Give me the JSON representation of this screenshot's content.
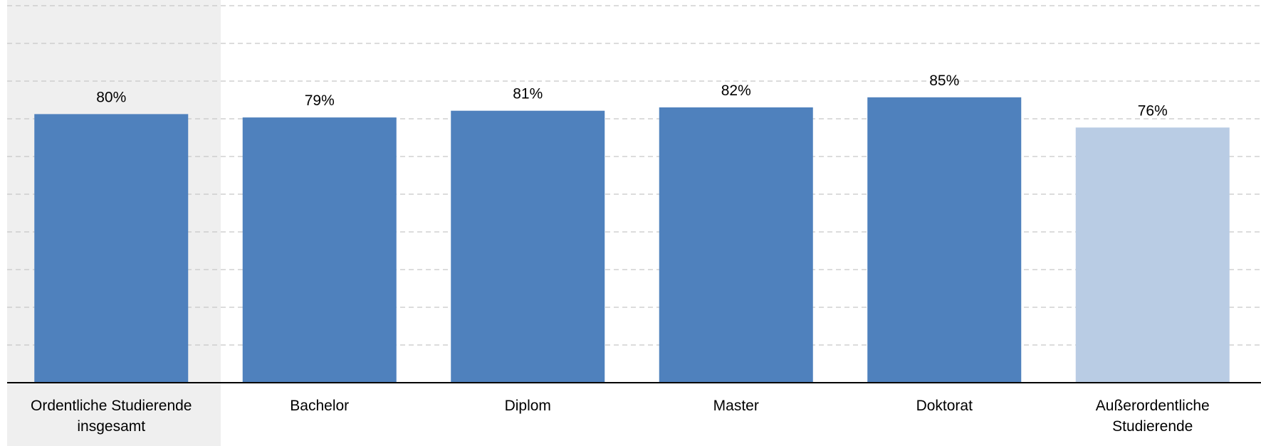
{
  "chart_data": {
    "type": "bar",
    "categories": [
      [
        "Ordentliche Studierende",
        "insgesamt"
      ],
      [
        "Bachelor"
      ],
      [
        "Diplom"
      ],
      [
        "Master"
      ],
      [
        "Doktorat"
      ],
      [
        "Außerordentliche",
        "Studierende"
      ]
    ],
    "values": [
      80,
      79,
      81,
      82,
      85,
      76
    ],
    "value_labels": [
      "80%",
      "79%",
      "81%",
      "82%",
      "85%",
      "76%"
    ],
    "ylim": [
      0,
      100
    ],
    "grid": true,
    "colors": {
      "bar": "#4f81bd",
      "bar_highlight": "#b9cce4",
      "first_group_background": "#efefef",
      "gridline": "#c8c8c8",
      "axis": "#000000"
    },
    "highlighted_categories": [
      5
    ]
  }
}
